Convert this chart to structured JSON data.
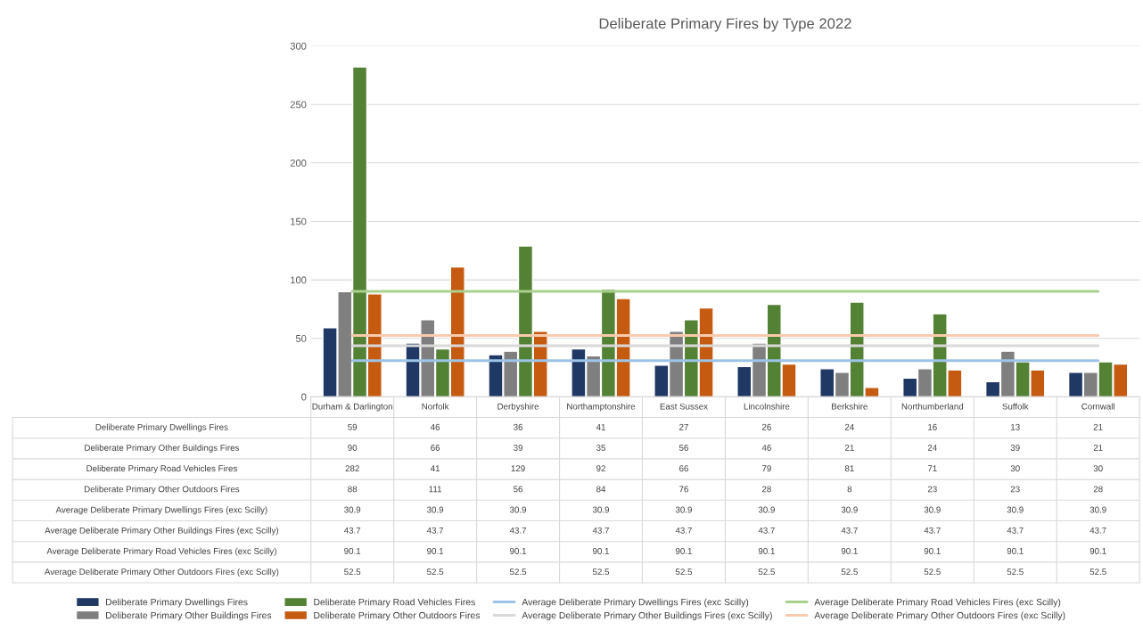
{
  "chart_data": {
    "type": "bar",
    "title": "Deliberate Primary Fires by Type 2022",
    "categories": [
      "Durham & Darlington",
      "Norfolk",
      "Derbyshire",
      "Northamptonshire",
      "East Sussex",
      "Lincolnshire",
      "Berkshire",
      "Northumberland",
      "Suffolk",
      "Cornwall"
    ],
    "series": [
      {
        "name": "Deliberate Primary Dwellings Fires",
        "type": "bar",
        "color": "#203864",
        "values": [
          59,
          46,
          36,
          41,
          27,
          26,
          24,
          16,
          13,
          21
        ]
      },
      {
        "name": "Deliberate Primary Other Buildings Fires",
        "type": "bar",
        "color": "#7f7f7f",
        "values": [
          90,
          66,
          39,
          35,
          56,
          46,
          21,
          24,
          39,
          21
        ]
      },
      {
        "name": "Deliberate Primary Road Vehicles Fires",
        "type": "bar",
        "color": "#548235",
        "values": [
          282,
          41,
          129,
          92,
          66,
          79,
          81,
          71,
          30,
          30
        ]
      },
      {
        "name": "Deliberate Primary Other Outdoors Fires",
        "type": "bar",
        "color": "#c55a11",
        "values": [
          88,
          111,
          56,
          84,
          76,
          28,
          8,
          23,
          23,
          28
        ]
      },
      {
        "name": "Average Deliberate Primary Dwellings Fires (exc Scilly)",
        "type": "line",
        "color": "#9dc3e6",
        "values": [
          30.9,
          30.9,
          30.9,
          30.9,
          30.9,
          30.9,
          30.9,
          30.9,
          30.9,
          30.9
        ]
      },
      {
        "name": "Average Deliberate Primary Other Buildings Fires (exc Scilly)",
        "type": "line",
        "color": "#d9d9d9",
        "values": [
          43.7,
          43.7,
          43.7,
          43.7,
          43.7,
          43.7,
          43.7,
          43.7,
          43.7,
          43.7
        ]
      },
      {
        "name": "Average Deliberate Primary Road Vehicles Fires (exc Scilly)",
        "type": "line",
        "color": "#a9d18e",
        "values": [
          90.1,
          90.1,
          90.1,
          90.1,
          90.1,
          90.1,
          90.1,
          90.1,
          90.1,
          90.1
        ]
      },
      {
        "name": "Average Deliberate Primary Other Outdoors Fires (exc Scilly)",
        "type": "line",
        "color": "#f8cbad",
        "values": [
          52.5,
          52.5,
          52.5,
          52.5,
          52.5,
          52.5,
          52.5,
          52.5,
          52.5,
          52.5
        ]
      }
    ],
    "ylim": [
      0,
      300
    ],
    "yticks": [
      0,
      50,
      100,
      150,
      200,
      250,
      300
    ],
    "grid": "y",
    "legend": "bottom",
    "data_labels": true,
    "marker": "none",
    "line_style": "solid"
  }
}
